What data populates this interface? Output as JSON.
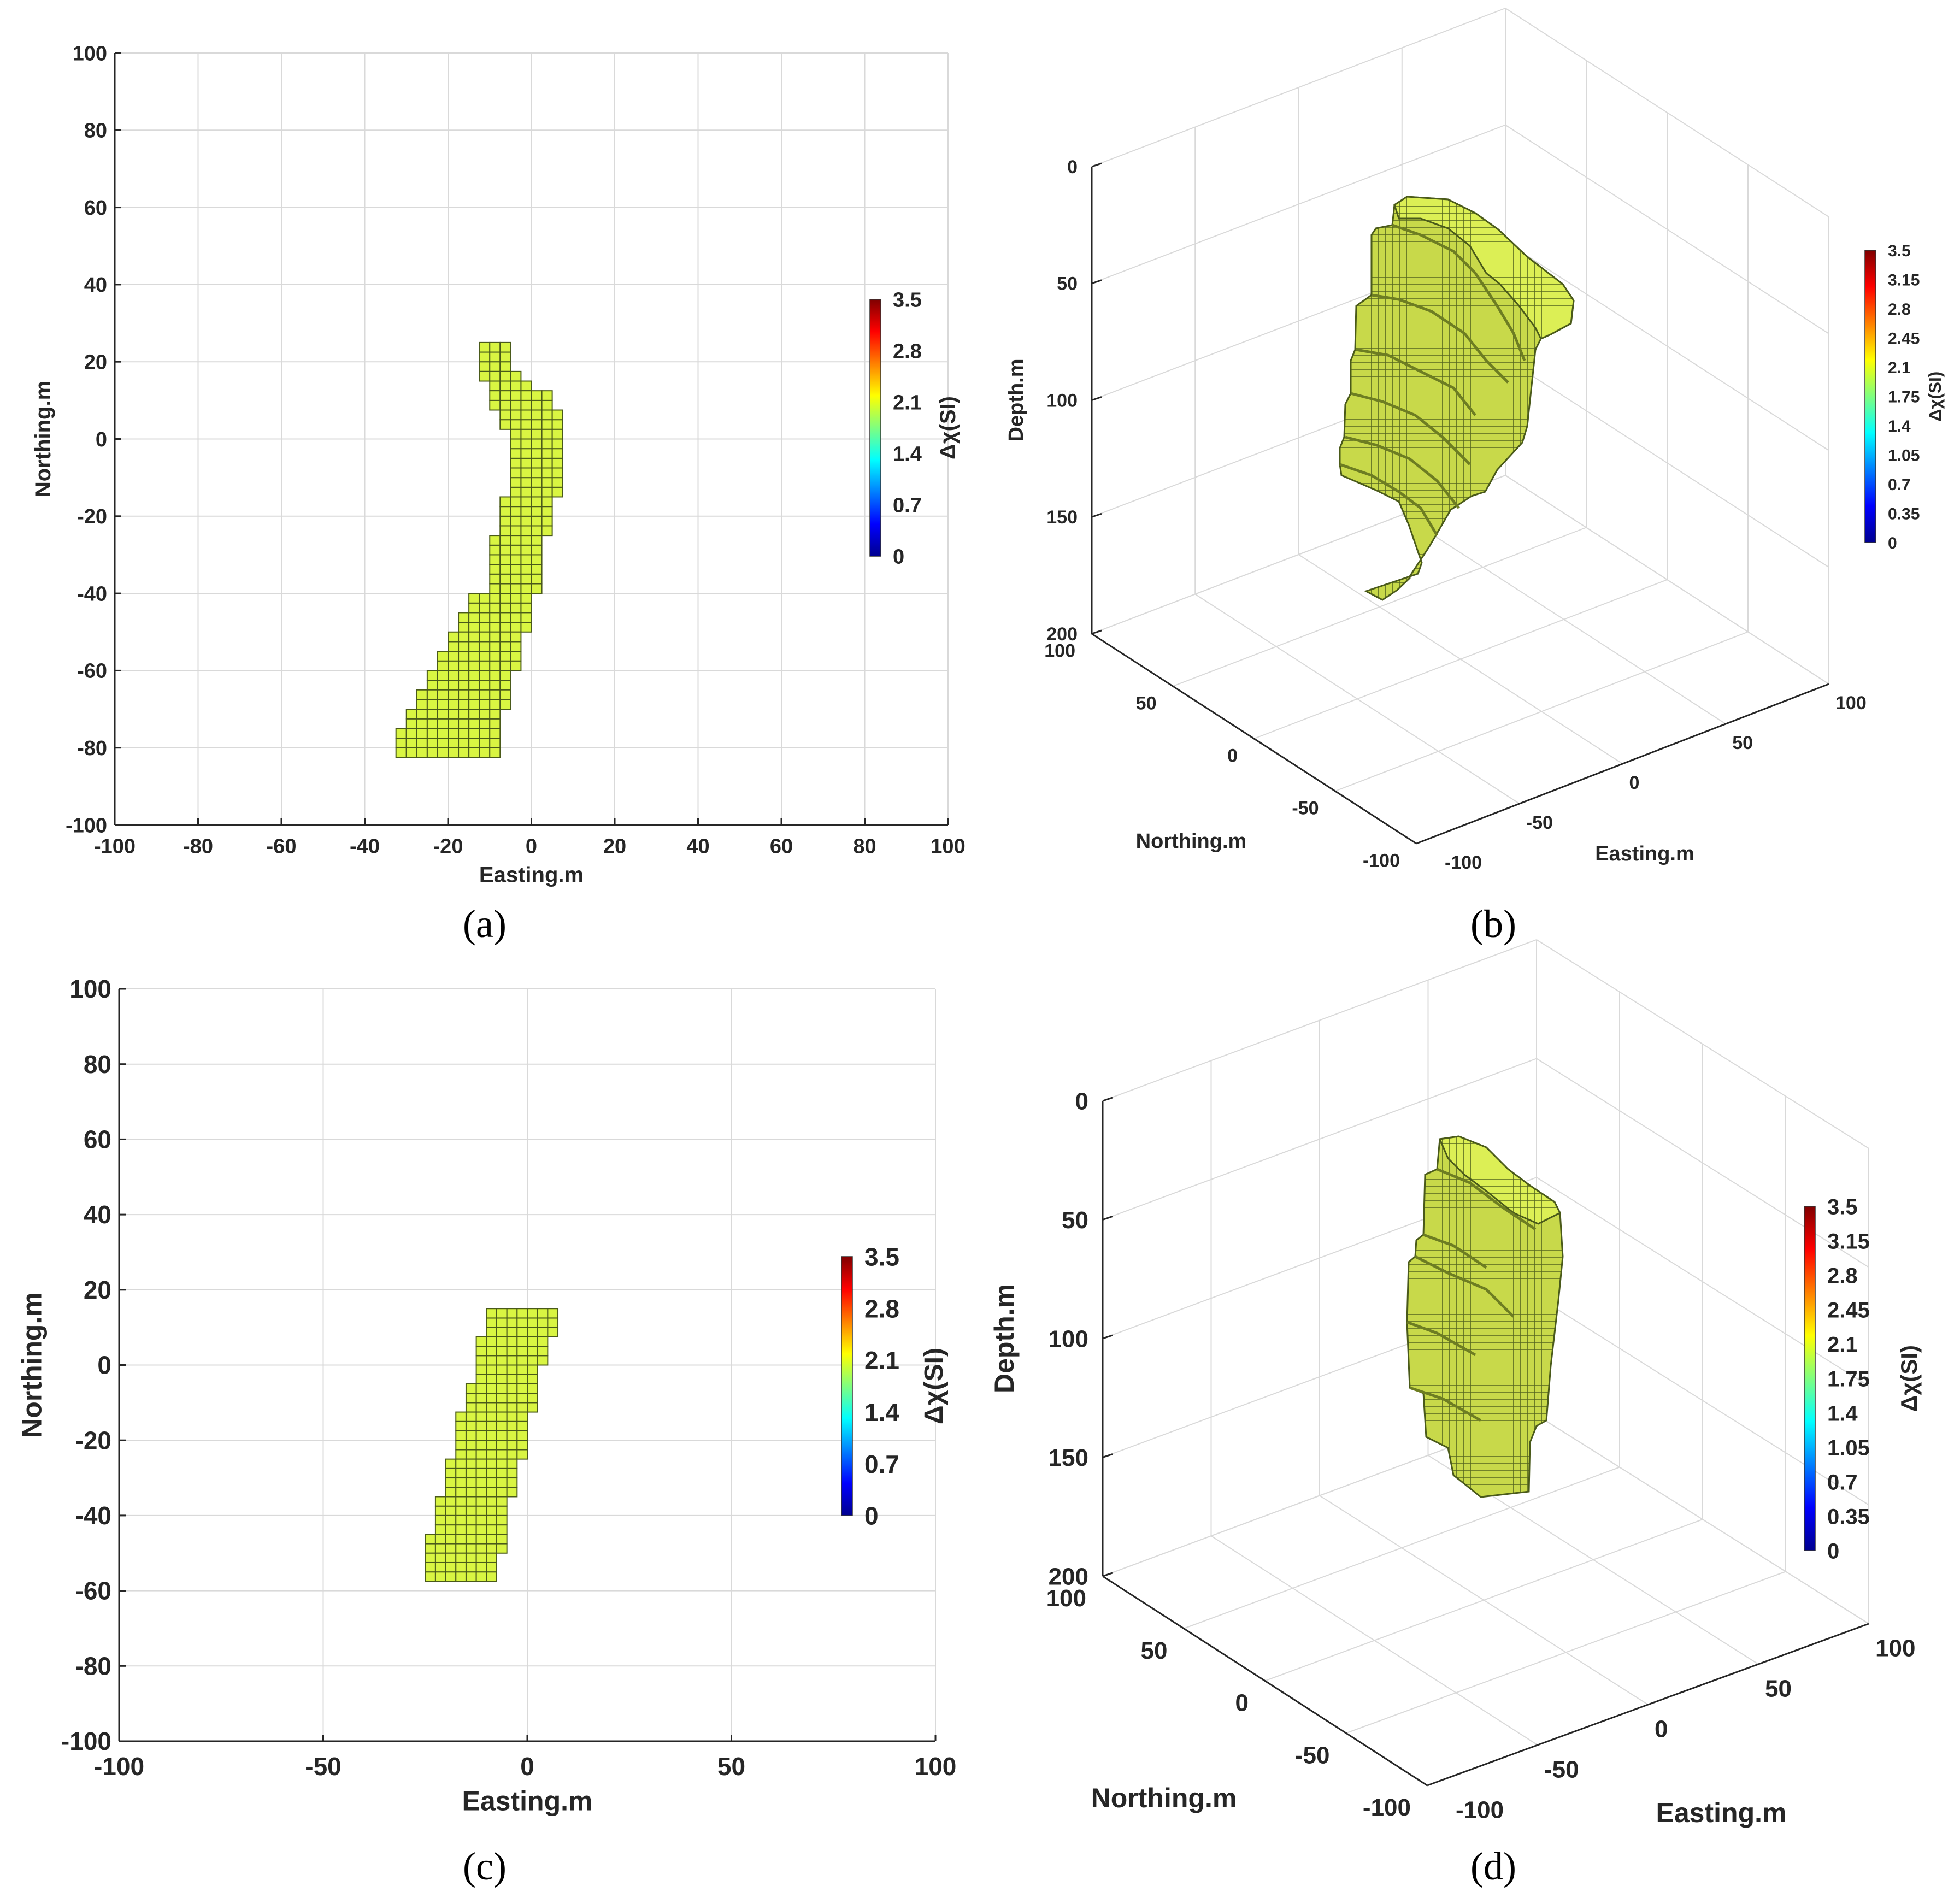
{
  "figure": {
    "captions": [
      "(a)",
      "(b)",
      "(c)",
      "(d)"
    ]
  },
  "colors": {
    "voxel_fill": "#d9f542",
    "voxel_edge": "#4a5a1a",
    "voxel_3d_face": "#b5c94a",
    "grid": "#d9d9d9",
    "axis": "#262626"
  },
  "chart_data": [
    {
      "panel": "a",
      "type": "heatmap",
      "view": "plan",
      "xlabel": "Easting.m",
      "ylabel": "Northing.m",
      "xlim": [
        -100,
        100
      ],
      "ylim": [
        -100,
        100
      ],
      "xticks": [
        -100,
        -80,
        -60,
        -40,
        -20,
        0,
        20,
        40,
        60,
        80,
        100
      ],
      "yticks": [
        -100,
        -80,
        -60,
        -40,
        -20,
        0,
        20,
        40,
        60,
        80,
        100
      ],
      "grid": true,
      "cell_size": 2.5,
      "value": 2.1,
      "body_rows": [
        {
          "y0": 17.5,
          "y1": 25,
          "x0": -12.5,
          "x1": -5
        },
        {
          "y0": 15,
          "y1": 17.5,
          "x0": -12.5,
          "x1": -2.5
        },
        {
          "y0": 12.5,
          "y1": 15,
          "x0": -10,
          "x1": 0
        },
        {
          "y0": 7.5,
          "y1": 12.5,
          "x0": -10,
          "x1": 5
        },
        {
          "y0": 2.5,
          "y1": 7.5,
          "x0": -7.5,
          "x1": 7.5
        },
        {
          "y0": -15,
          "y1": 2.5,
          "x0": -5,
          "x1": 7.5
        },
        {
          "y0": -25,
          "y1": -15,
          "x0": -7.5,
          "x1": 5
        },
        {
          "y0": -30,
          "y1": -25,
          "x0": -10,
          "x1": 2.5
        },
        {
          "y0": -40,
          "y1": -30,
          "x0": -10,
          "x1": 2.5
        },
        {
          "y0": -45,
          "y1": -40,
          "x0": -15,
          "x1": 0
        },
        {
          "y0": -50,
          "y1": -45,
          "x0": -17.5,
          "x1": 0
        },
        {
          "y0": -55,
          "y1": -50,
          "x0": -20,
          "x1": -2.5
        },
        {
          "y0": -60,
          "y1": -55,
          "x0": -22.5,
          "x1": -2.5
        },
        {
          "y0": -65,
          "y1": -60,
          "x0": -25,
          "x1": -5
        },
        {
          "y0": -70,
          "y1": -65,
          "x0": -27.5,
          "x1": -5
        },
        {
          "y0": -75,
          "y1": -70,
          "x0": -30,
          "x1": -7.5
        },
        {
          "y0": -80,
          "y1": -75,
          "x0": -32.5,
          "x1": -7.5
        },
        {
          "y0": -82.5,
          "y1": -80,
          "x0": -32.5,
          "x1": -7.5
        }
      ],
      "colorbar": {
        "label": "Δχ(SI)",
        "ticks": [
          "3.5",
          "2.8",
          "2.1",
          "1.4",
          "0.7",
          "0"
        ],
        "range": [
          0,
          3.5
        ]
      }
    },
    {
      "panel": "b",
      "type": "heatmap",
      "view": "3d",
      "zlabel": "Depth.m",
      "xlabel": "Easting.m",
      "ylabel": "Northing.m",
      "zticks": [
        "0",
        "50",
        "100",
        "150",
        "200"
      ],
      "xticks": [
        "-100",
        "-50",
        "0",
        "50",
        "100"
      ],
      "yticks": [
        "100",
        "50",
        "0",
        "-50",
        "-100"
      ],
      "depth_range": [
        0,
        200
      ],
      "value": 2.1,
      "colorbar": {
        "label": "Δχ(SI)",
        "ticks": [
          "3.5",
          "3.15",
          "2.8",
          "2.45",
          "2.1",
          "1.75",
          "1.4",
          "1.05",
          "0.7",
          "0.35",
          "0"
        ],
        "range": [
          0,
          3.5
        ]
      }
    },
    {
      "panel": "c",
      "type": "heatmap",
      "view": "plan",
      "xlabel": "Easting.m",
      "ylabel": "Northing.m",
      "xlim": [
        -100,
        100
      ],
      "ylim": [
        -100,
        100
      ],
      "xticks": [
        -100,
        -50,
        0,
        50,
        100
      ],
      "yticks": [
        -100,
        -80,
        -60,
        -40,
        -20,
        0,
        20,
        40,
        60,
        80,
        100
      ],
      "grid": true,
      "cell_size": 2.5,
      "value": 2.1,
      "body_rows": [
        {
          "y0": 7.5,
          "y1": 15,
          "x0": -10,
          "x1": 7.5
        },
        {
          "y0": 0,
          "y1": 7.5,
          "x0": -12.5,
          "x1": 5
        },
        {
          "y0": -5,
          "y1": 0,
          "x0": -12.5,
          "x1": 2.5
        },
        {
          "y0": -12.5,
          "y1": -5,
          "x0": -15,
          "x1": 2.5
        },
        {
          "y0": -17.5,
          "y1": -12.5,
          "x0": -17.5,
          "x1": 0
        },
        {
          "y0": -25,
          "y1": -17.5,
          "x0": -17.5,
          "x1": 0
        },
        {
          "y0": -30,
          "y1": -25,
          "x0": -20,
          "x1": -2.5
        },
        {
          "y0": -35,
          "y1": -30,
          "x0": -20,
          "x1": -2.5
        },
        {
          "y0": -40,
          "y1": -35,
          "x0": -22.5,
          "x1": -5
        },
        {
          "y0": -45,
          "y1": -40,
          "x0": -22.5,
          "x1": -5
        },
        {
          "y0": -50,
          "y1": -45,
          "x0": -25,
          "x1": -5
        },
        {
          "y0": -57.5,
          "y1": -50,
          "x0": -25,
          "x1": -7.5
        }
      ],
      "colorbar": {
        "label": "Δχ(SI)",
        "ticks": [
          "3.5",
          "2.8",
          "2.1",
          "1.4",
          "0.7",
          "0"
        ],
        "range": [
          0,
          3.5
        ]
      }
    },
    {
      "panel": "d",
      "type": "heatmap",
      "view": "3d",
      "zlabel": "Depth.m",
      "xlabel": "Easting.m",
      "ylabel": "Northing.m",
      "zticks": [
        "0",
        "50",
        "100",
        "150",
        "200"
      ],
      "xticks": [
        "-100",
        "-50",
        "0",
        "50",
        "100"
      ],
      "yticks": [
        "100",
        "50",
        "0",
        "-50",
        "-100"
      ],
      "depth_range": [
        0,
        200
      ],
      "value": 2.1,
      "colorbar": {
        "label": "Δχ(SI)",
        "ticks": [
          "3.5",
          "3.15",
          "2.8",
          "2.45",
          "2.1",
          "1.75",
          "1.4",
          "1.05",
          "0.7",
          "0.35",
          "0"
        ],
        "range": [
          0,
          3.5
        ]
      }
    }
  ]
}
